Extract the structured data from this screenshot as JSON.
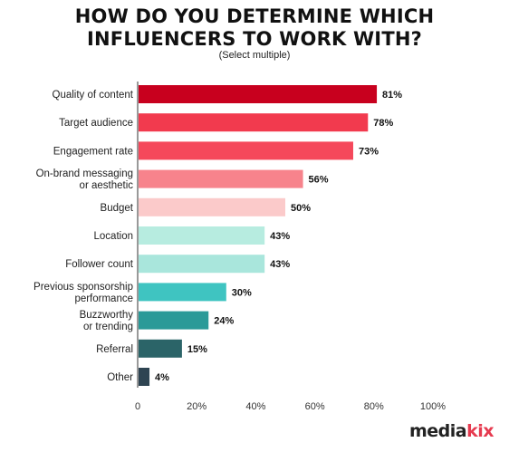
{
  "header": {
    "title_line1": "HOW DO YOU DETERMINE WHICH",
    "title_line2": "INFLUENCERS TO WORK WITH?",
    "subtitle": "(Select multiple)"
  },
  "brand": {
    "prefix": "media",
    "accent": "kix"
  },
  "colors": {
    "accent": "#e63a4f"
  },
  "chart_data": {
    "type": "bar",
    "orientation": "horizontal",
    "title": "HOW DO YOU DETERMINE WHICH INFLUENCERS TO WORK WITH?",
    "subtitle": "(Select multiple)",
    "categories": [
      [
        "Quality of content"
      ],
      [
        "Target audience"
      ],
      [
        "Engagement rate"
      ],
      [
        "On-brand messaging",
        "or aesthetic"
      ],
      [
        "Budget"
      ],
      [
        "Location"
      ],
      [
        "Follower count"
      ],
      [
        "Previous sponsorship",
        "performance"
      ],
      [
        "Buzzworthy",
        "or trending"
      ],
      [
        "Referral"
      ],
      [
        "Other"
      ]
    ],
    "values": [
      81,
      78,
      73,
      56,
      50,
      43,
      43,
      30,
      24,
      15,
      4
    ],
    "value_labels": [
      "81%",
      "78%",
      "73%",
      "56%",
      "50%",
      "43%",
      "43%",
      "30%",
      "24%",
      "15%",
      "4%"
    ],
    "bar_colors": [
      "#c8001e",
      "#f23a4e",
      "#f5485b",
      "#f7838c",
      "#fbcaca",
      "#b7ece0",
      "#a9e6dc",
      "#3fc4c1",
      "#2a9a98",
      "#2b6468",
      "#2e4452"
    ],
    "xlim": [
      0,
      100
    ],
    "xticks": [
      0,
      20,
      40,
      60,
      80,
      100
    ],
    "xtick_labels": [
      "0",
      "20%",
      "40%",
      "60%",
      "80%",
      "100%"
    ],
    "grid": false,
    "legend": "none"
  }
}
